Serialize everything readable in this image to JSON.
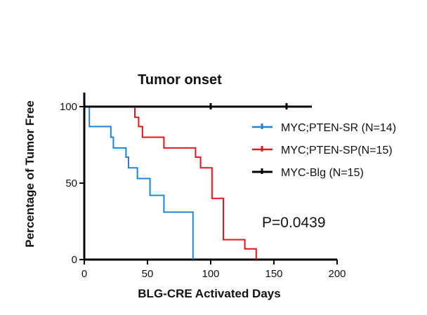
{
  "chart_data": {
    "type": "line",
    "subtype": "kaplan-meier",
    "title": "Tumor onset",
    "xlabel": "BLG-CRE Activated Days",
    "ylabel": "Percentage of Tumor Free",
    "xlim": [
      0,
      200
    ],
    "ylim": [
      0,
      100
    ],
    "x_ticks": [
      0,
      50,
      100,
      150,
      200
    ],
    "y_ticks": [
      0,
      50,
      100
    ],
    "grid": false,
    "legend_position": "right",
    "annotation": "P=0.0439",
    "series": [
      {
        "name": "MYC;PTEN-SR (N=14)",
        "color": "#1f84d8",
        "x": [
          0,
          4,
          21,
          23,
          33,
          35,
          42,
          45,
          52,
          63,
          86
        ],
        "y": [
          100,
          87,
          80,
          73,
          67,
          60,
          53,
          53,
          42,
          31,
          0
        ]
      },
      {
        "name": "MYC;PTEN-SP(N=15)",
        "color": "#e3171e",
        "x": [
          0,
          40,
          43,
          46,
          63,
          88,
          92,
          101,
          110,
          127,
          136
        ],
        "y": [
          100,
          93,
          87,
          80,
          73,
          67,
          60,
          40,
          13,
          7,
          0
        ]
      },
      {
        "name": "MYC-Blg (N=15)",
        "color": "#000000",
        "x": [
          0,
          100,
          160,
          180
        ],
        "y": [
          100,
          100,
          100,
          100
        ]
      }
    ]
  }
}
